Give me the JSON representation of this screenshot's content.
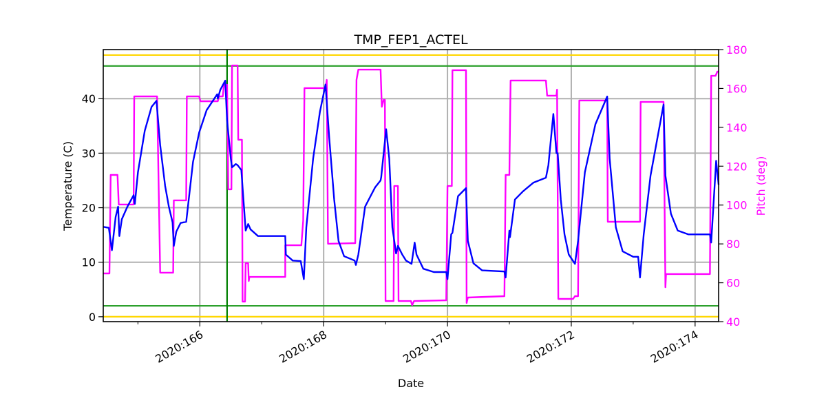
{
  "chart_data": {
    "type": "line",
    "title": "TMP_FEP1_ACTEL",
    "xlabel": "Date",
    "ylabel": "Temperature (C)",
    "y2label": "Pitch (deg)",
    "xlim": [
      164.44,
      174.38
    ],
    "ylim": [
      -0.9,
      49.0
    ],
    "y2lim": [
      40,
      180
    ],
    "grid": true,
    "x_ticks": [
      {
        "value": 166,
        "label": "2020:166"
      },
      {
        "value": 168,
        "label": "2020:168"
      },
      {
        "value": 170,
        "label": "2020:170"
      },
      {
        "value": 172,
        "label": "2020:172"
      },
      {
        "value": 174,
        "label": "2020:174"
      }
    ],
    "x_minor_ticks": [
      165,
      167,
      169,
      171,
      173
    ],
    "y_ticks": [
      0,
      10,
      20,
      30,
      40
    ],
    "y2_ticks": [
      40,
      60,
      80,
      100,
      120,
      140,
      160,
      180
    ],
    "colors": {
      "temperature": "#0000ff",
      "pitch": "#ff00ff",
      "planning_limit": "#ffd700",
      "caution_limit": "#2ca02c",
      "marker_line": "#008000",
      "grid": "#b0b0b0"
    },
    "horizontal_lines": [
      {
        "value": 48,
        "color": "#ffd700"
      },
      {
        "value": 46,
        "color": "#2ca02c"
      },
      {
        "value": 2,
        "color": "#2ca02c"
      },
      {
        "value": 0,
        "color": "#ffd700"
      }
    ],
    "vertical_lines": [
      {
        "value": 166.44,
        "color": "#008000"
      }
    ],
    "series": [
      {
        "axis": "left",
        "color": "#0000ff",
        "points": [
          [
            164.44,
            16.5
          ],
          [
            164.53,
            16.3
          ],
          [
            164.58,
            12.2
          ],
          [
            164.64,
            18.3
          ],
          [
            164.68,
            20.2
          ],
          [
            164.7,
            14.8
          ],
          [
            164.74,
            17.9
          ],
          [
            164.83,
            20.2
          ],
          [
            164.93,
            22.3
          ],
          [
            164.95,
            20.7
          ],
          [
            165.0,
            26.5
          ],
          [
            165.11,
            34.1
          ],
          [
            165.22,
            38.5
          ],
          [
            165.3,
            39.6
          ],
          [
            165.36,
            31.5
          ],
          [
            165.44,
            24.0
          ],
          [
            165.5,
            20.2
          ],
          [
            165.56,
            17.3
          ],
          [
            165.58,
            13.0
          ],
          [
            165.62,
            15.6
          ],
          [
            165.69,
            17.2
          ],
          [
            165.78,
            17.4
          ],
          [
            165.89,
            28.4
          ],
          [
            165.99,
            33.8
          ],
          [
            166.11,
            37.9
          ],
          [
            166.28,
            40.8
          ],
          [
            166.29,
            40.0
          ],
          [
            166.33,
            41.6
          ],
          [
            166.41,
            43.3
          ],
          [
            166.44,
            36.0
          ],
          [
            166.5,
            29.0
          ],
          [
            166.52,
            27.4
          ],
          [
            166.58,
            28.0
          ],
          [
            166.61,
            27.8
          ],
          [
            166.67,
            26.9
          ],
          [
            166.74,
            15.8
          ],
          [
            166.78,
            17.0
          ],
          [
            166.82,
            16.0
          ],
          [
            166.94,
            14.8
          ],
          [
            167.38,
            14.8
          ],
          [
            167.39,
            11.4
          ],
          [
            167.5,
            10.3
          ],
          [
            167.63,
            10.2
          ],
          [
            167.68,
            6.9
          ],
          [
            167.72,
            16.4
          ],
          [
            167.83,
            29.0
          ],
          [
            167.94,
            37.6
          ],
          [
            168.03,
            42.6
          ],
          [
            168.09,
            32.8
          ],
          [
            168.17,
            21.5
          ],
          [
            168.24,
            13.9
          ],
          [
            168.33,
            11.1
          ],
          [
            168.5,
            10.3
          ],
          [
            168.52,
            9.5
          ],
          [
            168.56,
            11.4
          ],
          [
            168.67,
            20.2
          ],
          [
            168.83,
            23.7
          ],
          [
            168.92,
            25.0
          ],
          [
            168.93,
            25.6
          ],
          [
            169.01,
            34.4
          ],
          [
            169.06,
            29.0
          ],
          [
            169.11,
            16.4
          ],
          [
            169.17,
            11.6
          ],
          [
            169.2,
            13.0
          ],
          [
            169.27,
            11.4
          ],
          [
            169.33,
            10.3
          ],
          [
            169.42,
            9.7
          ],
          [
            169.47,
            13.6
          ],
          [
            169.5,
            11.4
          ],
          [
            169.61,
            8.8
          ],
          [
            169.78,
            8.2
          ],
          [
            169.98,
            8.2
          ],
          [
            170.0,
            6.9
          ],
          [
            170.06,
            15.1
          ],
          [
            170.08,
            15.4
          ],
          [
            170.17,
            22.1
          ],
          [
            170.3,
            23.6
          ],
          [
            170.33,
            13.9
          ],
          [
            170.42,
            9.8
          ],
          [
            170.56,
            8.5
          ],
          [
            170.92,
            8.3
          ],
          [
            170.94,
            7.2
          ],
          [
            171.0,
            15.8
          ],
          [
            171.01,
            14.6
          ],
          [
            171.09,
            21.5
          ],
          [
            171.22,
            23.0
          ],
          [
            171.39,
            24.6
          ],
          [
            171.59,
            25.5
          ],
          [
            171.63,
            27.8
          ],
          [
            171.71,
            37.2
          ],
          [
            171.76,
            30.0
          ],
          [
            171.78,
            30.0
          ],
          [
            171.83,
            21.5
          ],
          [
            171.89,
            15.1
          ],
          [
            171.96,
            11.4
          ],
          [
            172.06,
            9.7
          ],
          [
            172.11,
            13.9
          ],
          [
            172.22,
            26.5
          ],
          [
            172.39,
            35.3
          ],
          [
            172.58,
            40.4
          ],
          [
            172.62,
            29.0
          ],
          [
            172.72,
            16.4
          ],
          [
            172.83,
            12.0
          ],
          [
            173.0,
            11.0
          ],
          [
            173.08,
            11.0
          ],
          [
            173.11,
            7.2
          ],
          [
            173.17,
            15.1
          ],
          [
            173.28,
            25.9
          ],
          [
            173.49,
            38.9
          ],
          [
            173.52,
            25.9
          ],
          [
            173.61,
            18.9
          ],
          [
            173.72,
            15.8
          ],
          [
            173.89,
            15.1
          ],
          [
            174.24,
            15.1
          ],
          [
            174.26,
            13.6
          ],
          [
            174.34,
            28.6
          ],
          [
            174.38,
            24.2
          ]
        ]
      },
      {
        "axis": "right",
        "color": "#ff00ff",
        "points": [
          [
            164.44,
            64.8
          ],
          [
            164.54,
            64.8
          ],
          [
            164.56,
            115.5
          ],
          [
            164.67,
            115.5
          ],
          [
            164.69,
            100.3
          ],
          [
            164.93,
            100.3
          ],
          [
            164.94,
            155.9
          ],
          [
            165.31,
            155.9
          ],
          [
            165.36,
            65.2
          ],
          [
            165.57,
            65.2
          ],
          [
            165.58,
            102.4
          ],
          [
            165.78,
            102.4
          ],
          [
            165.79,
            155.9
          ],
          [
            165.99,
            155.9
          ],
          [
            166.01,
            153.4
          ],
          [
            166.29,
            153.4
          ],
          [
            166.31,
            155.9
          ],
          [
            166.37,
            155.9
          ],
          [
            166.39,
            161.9
          ],
          [
            166.44,
            161.9
          ],
          [
            166.46,
            108.1
          ],
          [
            166.51,
            108.1
          ],
          [
            166.52,
            171.8
          ],
          [
            166.61,
            171.8
          ],
          [
            166.62,
            133.6
          ],
          [
            166.68,
            133.6
          ],
          [
            166.69,
            50.3
          ],
          [
            166.73,
            50.3
          ],
          [
            166.74,
            70.1
          ],
          [
            166.78,
            70.1
          ],
          [
            166.79,
            60.9
          ],
          [
            166.8,
            63.0
          ],
          [
            167.38,
            63.0
          ],
          [
            167.38,
            79.3
          ],
          [
            167.64,
            79.3
          ],
          [
            167.67,
            92.1
          ],
          [
            167.69,
            160.2
          ],
          [
            168.03,
            160.2
          ],
          [
            168.05,
            164.4
          ],
          [
            168.07,
            80.1
          ],
          [
            168.51,
            80.4
          ],
          [
            168.53,
            164.4
          ],
          [
            168.56,
            169.7
          ],
          [
            168.92,
            169.7
          ],
          [
            168.94,
            150.6
          ],
          [
            168.97,
            154.1
          ],
          [
            168.99,
            154.1
          ],
          [
            169.0,
            50.6
          ],
          [
            169.13,
            50.6
          ],
          [
            169.14,
            109.8
          ],
          [
            169.2,
            109.8
          ],
          [
            169.21,
            50.6
          ],
          [
            169.41,
            50.6
          ],
          [
            169.43,
            48.5
          ],
          [
            169.46,
            50.6
          ],
          [
            169.98,
            51.0
          ],
          [
            170.0,
            109.8
          ],
          [
            170.07,
            109.8
          ],
          [
            170.08,
            169.4
          ],
          [
            170.3,
            169.4
          ],
          [
            170.31,
            49.6
          ],
          [
            170.33,
            52.4
          ],
          [
            170.92,
            53.1
          ],
          [
            170.94,
            115.5
          ],
          [
            171.0,
            115.5
          ],
          [
            171.02,
            164.1
          ],
          [
            171.59,
            164.1
          ],
          [
            171.61,
            156.3
          ],
          [
            171.76,
            156.3
          ],
          [
            171.77,
            159.4
          ],
          [
            171.79,
            51.7
          ],
          [
            172.03,
            51.7
          ],
          [
            172.06,
            53.1
          ],
          [
            172.11,
            53.1
          ],
          [
            172.13,
            153.8
          ],
          [
            172.58,
            153.8
          ],
          [
            172.59,
            91.4
          ],
          [
            173.11,
            91.4
          ],
          [
            173.12,
            153.1
          ],
          [
            173.49,
            153.1
          ],
          [
            173.52,
            57.7
          ],
          [
            173.53,
            64.5
          ],
          [
            174.24,
            64.5
          ],
          [
            174.26,
            166.5
          ],
          [
            174.33,
            166.5
          ],
          [
            174.36,
            168.7
          ],
          [
            174.38,
            168.7
          ]
        ]
      }
    ]
  }
}
